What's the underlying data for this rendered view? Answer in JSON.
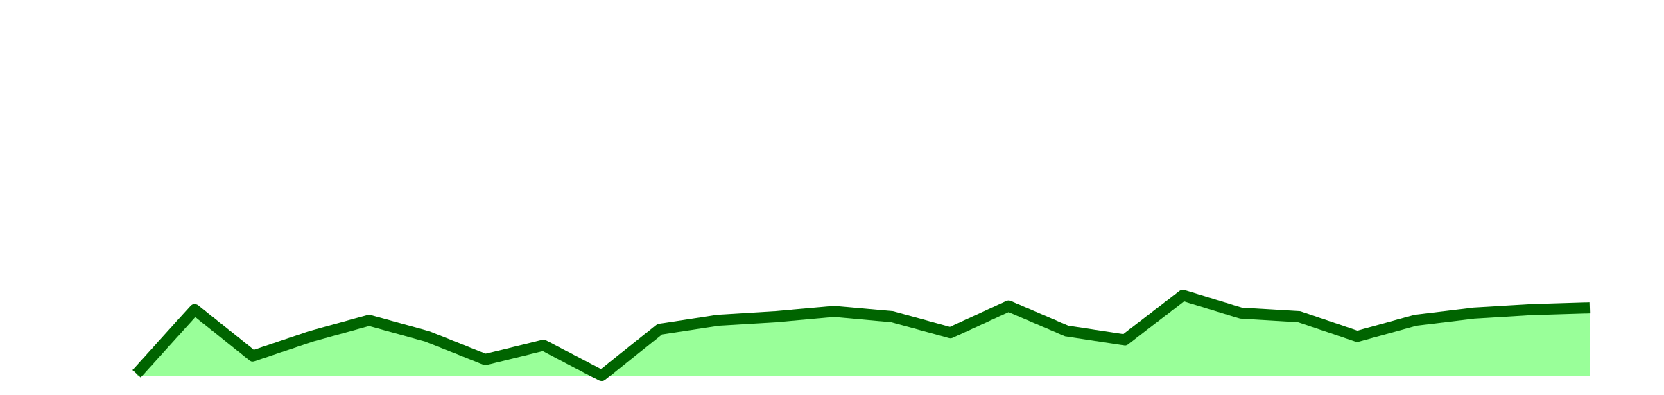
{
  "chart_data": {
    "type": "area",
    "x": [
      0,
      1,
      2,
      3,
      4,
      5,
      6,
      7,
      8,
      9,
      10,
      11,
      12,
      13,
      14,
      15,
      16,
      17,
      18,
      19,
      20,
      21,
      22,
      23,
      24,
      25
    ],
    "series": [
      {
        "values": [
          0.5,
          18.5,
          5.5,
          11.0,
          15.5,
          11.0,
          4.5,
          8.5,
          0.0,
          13.0,
          15.5,
          16.5,
          18.0,
          16.5,
          12.0,
          19.5,
          12.5,
          10.0,
          22.5,
          17.5,
          16.5,
          11.0,
          15.5,
          17.5,
          18.5,
          19.0
        ],
        "line_color": "#006400",
        "fill_color": "#99ff99"
      }
    ],
    "ylim": [
      0,
      100
    ],
    "grid": false,
    "legend": "none",
    "title": "",
    "xlabel": "",
    "ylabel": ""
  }
}
